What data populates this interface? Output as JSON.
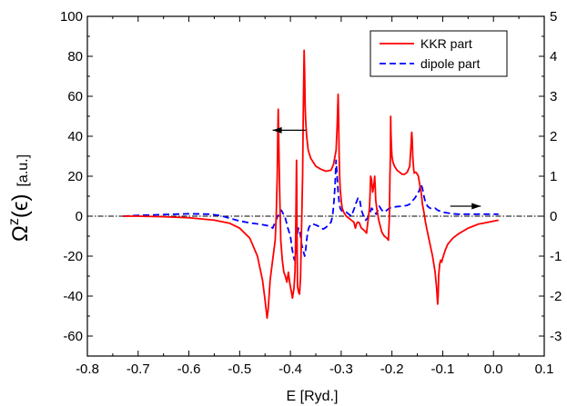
{
  "chart_data": {
    "type": "line",
    "xlabel": "E [Ryd.]",
    "ylabel_symbol": "Ω",
    "ylabel_superscript": "z",
    "ylabel_arg": "(ϵ)",
    "ylabel_unit": "[a.u.]",
    "xlim": [
      -0.8,
      0.1
    ],
    "ylim_left": [
      -70,
      100
    ],
    "ylim_right": [
      -3.5,
      5
    ],
    "x_ticks": [
      -0.8,
      -0.7,
      -0.6,
      -0.5,
      -0.4,
      -0.3,
      -0.2,
      -0.1,
      0.0,
      0.1
    ],
    "x_tick_labels": [
      "-0.8",
      "-0.7",
      "-0.6",
      "-0.5",
      "-0.4",
      "-0.3",
      "-0.2",
      "-0.1",
      "0.0",
      "0.1"
    ],
    "y_left_ticks": [
      -60,
      -40,
      -20,
      0,
      20,
      40,
      60,
      80,
      100
    ],
    "y_left_tick_labels": [
      "-60",
      "-40",
      "-20",
      "0",
      "20",
      "40",
      "60",
      "80",
      "100"
    ],
    "y_right_ticks": [
      -3,
      -2,
      -1,
      0,
      1,
      2,
      3,
      4,
      5
    ],
    "y_right_tick_labels": [
      "-3",
      "-2",
      "-1",
      "0",
      "1",
      "2",
      "3",
      "4",
      "5"
    ],
    "grid": false,
    "legend_position": "top-right",
    "zero_line": true,
    "annotations": [
      {
        "type": "arrow",
        "direction": "left",
        "at": {
          "x": -0.37,
          "y": 43
        },
        "to": {
          "x": -0.435,
          "y": 43
        },
        "meaning": "left axis"
      },
      {
        "type": "arrow",
        "direction": "right",
        "at": {
          "x": -0.085,
          "y": 5
        },
        "to": {
          "x": -0.025,
          "y": 5
        },
        "meaning": "right axis"
      }
    ],
    "series": [
      {
        "name": "KKR part",
        "color": "#ff0000",
        "style": "solid",
        "axis": "left",
        "x": [
          -0.73,
          -0.7,
          -0.65,
          -0.6,
          -0.55,
          -0.52,
          -0.5,
          -0.48,
          -0.465,
          -0.455,
          -0.45,
          -0.446,
          -0.444,
          -0.442,
          -0.44,
          -0.435,
          -0.43,
          -0.428,
          -0.426,
          -0.425,
          -0.424,
          -0.423,
          -0.421,
          -0.419,
          -0.416,
          -0.413,
          -0.41,
          -0.407,
          -0.404,
          -0.401,
          -0.398,
          -0.396,
          -0.393,
          -0.391,
          -0.39,
          -0.389,
          -0.388,
          -0.3875,
          -0.387,
          -0.386,
          -0.384,
          -0.382,
          -0.38,
          -0.378,
          -0.376,
          -0.375,
          -0.374,
          -0.373,
          -0.372,
          -0.371,
          -0.37,
          -0.368,
          -0.365,
          -0.36,
          -0.355,
          -0.35,
          -0.34,
          -0.33,
          -0.32,
          -0.315,
          -0.31,
          -0.308,
          -0.306,
          -0.305,
          -0.304,
          -0.303,
          -0.302,
          -0.3,
          -0.298,
          -0.295,
          -0.29,
          -0.285,
          -0.28,
          -0.275,
          -0.272,
          -0.27,
          -0.268,
          -0.266,
          -0.264,
          -0.262,
          -0.26,
          -0.255,
          -0.25,
          -0.248,
          -0.246,
          -0.244,
          -0.243,
          -0.242,
          -0.24,
          -0.238,
          -0.236,
          -0.235,
          -0.234,
          -0.233,
          -0.232,
          -0.23,
          -0.228,
          -0.226,
          -0.224,
          -0.222,
          -0.22,
          -0.215,
          -0.21,
          -0.207,
          -0.205,
          -0.204,
          -0.203,
          -0.2025,
          -0.202,
          -0.201,
          -0.2,
          -0.198,
          -0.195,
          -0.19,
          -0.185,
          -0.18,
          -0.175,
          -0.17,
          -0.165,
          -0.163,
          -0.161,
          -0.16,
          -0.159,
          -0.158,
          -0.157,
          -0.156,
          -0.155,
          -0.153,
          -0.15,
          -0.148,
          -0.146,
          -0.144,
          -0.142,
          -0.14,
          -0.137,
          -0.134,
          -0.13,
          -0.125,
          -0.12,
          -0.115,
          -0.112,
          -0.11,
          -0.109,
          -0.108,
          -0.106,
          -0.104,
          -0.102,
          -0.1,
          -0.095,
          -0.09,
          -0.08,
          -0.07,
          -0.06,
          -0.05,
          -0.04,
          -0.03,
          -0.02,
          -0.01,
          0.0,
          0.01
        ],
        "y": [
          0,
          0,
          -0.3,
          -0.8,
          -2,
          -3.5,
          -6,
          -11,
          -20,
          -32,
          -42,
          -51,
          -47,
          -40,
          -32,
          -22,
          -12,
          0,
          20,
          40,
          53.5,
          38,
          10,
          -12,
          -22,
          -28,
          -30,
          -33,
          -28,
          -34,
          -38,
          -41,
          -36,
          -28,
          -15,
          5,
          28,
          15,
          -10,
          -35,
          -38,
          -39,
          -30,
          -5,
          20,
          45,
          65,
          83,
          72,
          55,
          48,
          40,
          33,
          29,
          27,
          25,
          23.5,
          22.5,
          23,
          26,
          33,
          45,
          61,
          48,
          30,
          20,
          14,
          8,
          4,
          2,
          0,
          -1,
          -2,
          -3,
          -6,
          -4,
          -3,
          -3,
          -3.5,
          -5,
          -6,
          -7,
          -8.5,
          -4,
          0,
          5,
          12,
          20,
          18,
          12,
          15,
          17,
          20,
          15,
          8,
          4,
          1,
          -2,
          -4,
          -6,
          -8,
          -10,
          -11,
          -12,
          0,
          20,
          30,
          50,
          42,
          35,
          30,
          27,
          25,
          23,
          22,
          21,
          21,
          22,
          25,
          33,
          42,
          38,
          30,
          26,
          23,
          21.5,
          22,
          22,
          21,
          20,
          17,
          14,
          11,
          6,
          2,
          -3,
          -8,
          -14,
          -20,
          -28,
          -36,
          -44,
          -40,
          -30,
          -24,
          -22,
          -23,
          -21,
          -17,
          -14,
          -11,
          -9,
          -7.5,
          -6,
          -5,
          -4,
          -3.5,
          -3,
          -2.5,
          -2
        ]
      },
      {
        "name": "dipole part",
        "color": "#0000ff",
        "style": "dashed",
        "axis": "right",
        "x": [
          -0.73,
          -0.7,
          -0.65,
          -0.6,
          -0.56,
          -0.54,
          -0.52,
          -0.5,
          -0.48,
          -0.46,
          -0.44,
          -0.435,
          -0.43,
          -0.425,
          -0.42,
          -0.418,
          -0.415,
          -0.41,
          -0.405,
          -0.4,
          -0.397,
          -0.394,
          -0.392,
          -0.39,
          -0.388,
          -0.386,
          -0.384,
          -0.382,
          -0.38,
          -0.378,
          -0.376,
          -0.374,
          -0.372,
          -0.37,
          -0.368,
          -0.366,
          -0.364,
          -0.362,
          -0.36,
          -0.355,
          -0.35,
          -0.345,
          -0.34,
          -0.335,
          -0.33,
          -0.325,
          -0.32,
          -0.317,
          -0.314,
          -0.312,
          -0.31,
          -0.308,
          -0.306,
          -0.304,
          -0.302,
          -0.3,
          -0.295,
          -0.29,
          -0.285,
          -0.28,
          -0.277,
          -0.274,
          -0.272,
          -0.27,
          -0.267,
          -0.264,
          -0.262,
          -0.26,
          -0.256,
          -0.252,
          -0.248,
          -0.244,
          -0.24,
          -0.237,
          -0.234,
          -0.231,
          -0.228,
          -0.225,
          -0.22,
          -0.215,
          -0.21,
          -0.205,
          -0.2,
          -0.19,
          -0.18,
          -0.17,
          -0.165,
          -0.16,
          -0.155,
          -0.15,
          -0.146,
          -0.143,
          -0.14,
          -0.137,
          -0.134,
          -0.13,
          -0.125,
          -0.12,
          -0.115,
          -0.11,
          -0.1,
          -0.09,
          -0.08,
          -0.07,
          -0.06,
          -0.05,
          -0.04,
          -0.03,
          -0.02,
          -0.01,
          0.0,
          0.01
        ],
        "y": [
          0,
          0.02,
          0.04,
          0.06,
          0.05,
          0.02,
          -0.05,
          -0.12,
          -0.17,
          -0.2,
          -0.25,
          -0.3,
          -0.15,
          0.0,
          0.12,
          0.15,
          0.08,
          -0.05,
          -0.3,
          -0.5,
          -0.8,
          -1.0,
          -1.1,
          -1.0,
          -0.7,
          -0.4,
          -0.3,
          -0.35,
          -0.5,
          -0.7,
          -0.8,
          -0.9,
          -1.0,
          -0.85,
          -0.6,
          -0.4,
          -0.3,
          -0.25,
          -0.2,
          -0.2,
          -0.22,
          -0.25,
          -0.3,
          -0.32,
          -0.28,
          -0.22,
          -0.15,
          0.0,
          0.4,
          0.8,
          1.4,
          1.0,
          0.6,
          0.35,
          0.2,
          0.15,
          0.1,
          0.1,
          0.05,
          0.0,
          0.1,
          0.2,
          0.3,
          0.35,
          0.45,
          0.45,
          0.3,
          0.15,
          0.0,
          -0.1,
          -0.05,
          0.05,
          0.2,
          0.15,
          0.1,
          0.05,
          0.15,
          0.25,
          0.15,
          0.1,
          0.15,
          0.2,
          0.22,
          0.24,
          0.25,
          0.27,
          0.3,
          0.38,
          0.45,
          0.55,
          0.65,
          0.8,
          0.7,
          0.5,
          0.35,
          0.25,
          0.2,
          0.18,
          0.2,
          0.15,
          0.1,
          0.08,
          0.06,
          0.05,
          0.05,
          0.05,
          0.05,
          0.05,
          0.05,
          0.05,
          0.05,
          0.05
        ]
      }
    ]
  }
}
